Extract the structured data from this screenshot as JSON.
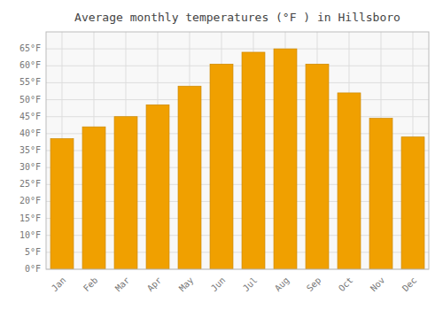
{
  "chart_data": {
    "type": "bar",
    "title": "Average monthly temperatures (°F ) in Hillsboro",
    "categories": [
      "Jan",
      "Feb",
      "Mar",
      "Apr",
      "May",
      "Jun",
      "Jul",
      "Aug",
      "Sep",
      "Oct",
      "Nov",
      "Dec"
    ],
    "values": [
      38.5,
      42.0,
      45.0,
      48.5,
      54.0,
      60.5,
      64.0,
      65.0,
      60.5,
      52.0,
      44.5,
      39.0
    ],
    "color": "#F0A000",
    "ylim": [
      0,
      70
    ],
    "yticks": [
      {
        "value": 0,
        "label": "0°F"
      },
      {
        "value": 5,
        "label": "5°F"
      },
      {
        "value": 10,
        "label": "10°F"
      },
      {
        "value": 15,
        "label": "15°F"
      },
      {
        "value": 20,
        "label": "20°F"
      },
      {
        "value": 25,
        "label": "25°F"
      },
      {
        "value": 30,
        "label": "30°F"
      },
      {
        "value": 35,
        "label": "35°F"
      },
      {
        "value": 40,
        "label": "40°F"
      },
      {
        "value": 45,
        "label": "45°F"
      },
      {
        "value": 50,
        "label": "50°F"
      },
      {
        "value": 55,
        "label": "55°F"
      },
      {
        "value": 60,
        "label": "60°F"
      },
      {
        "value": 65,
        "label": "65°F"
      }
    ],
    "grid": true
  }
}
